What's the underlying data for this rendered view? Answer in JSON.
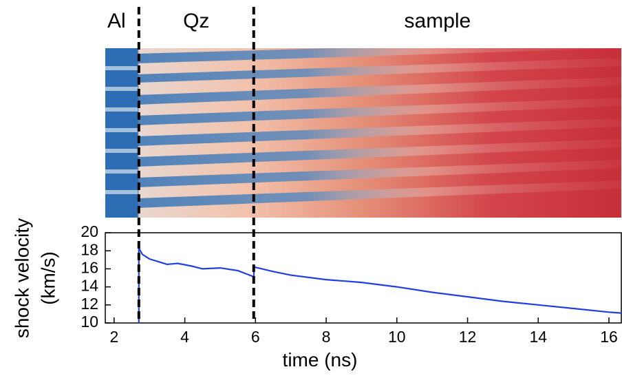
{
  "chart_data": {
    "type": "line",
    "section_labels": [
      "Al",
      "Qz",
      "sample"
    ],
    "ylabel": [
      "shock velocity",
      "(km/s)"
    ],
    "xlabel": "time (ns)",
    "xlim": [
      1.75,
      16.35
    ],
    "xticks": [
      2,
      4,
      6,
      8,
      10,
      12,
      14,
      16
    ],
    "ylim": [
      10,
      20
    ],
    "yticks": [
      10,
      12,
      14,
      16,
      18,
      20
    ],
    "boundaries": [
      2.7,
      5.95
    ],
    "series": [
      {
        "color": "#1f3fe0",
        "x": [
          2.7,
          2.7,
          2.8,
          3.0,
          3.5,
          3.8,
          4.2,
          4.5,
          5.0,
          5.5,
          5.9,
          5.95,
          5.96,
          6.5,
          7,
          8,
          9,
          10,
          11,
          12,
          13,
          14,
          15,
          16,
          16.35
        ],
        "values": [
          10,
          18.3,
          17.6,
          17.1,
          16.5,
          16.6,
          16.3,
          16.0,
          16.1,
          15.8,
          15.2,
          15.1,
          16.2,
          15.7,
          15.3,
          14.8,
          14.5,
          14.0,
          13.4,
          12.9,
          12.4,
          12.0,
          11.6,
          11.2,
          11.1
        ]
      }
    ]
  }
}
